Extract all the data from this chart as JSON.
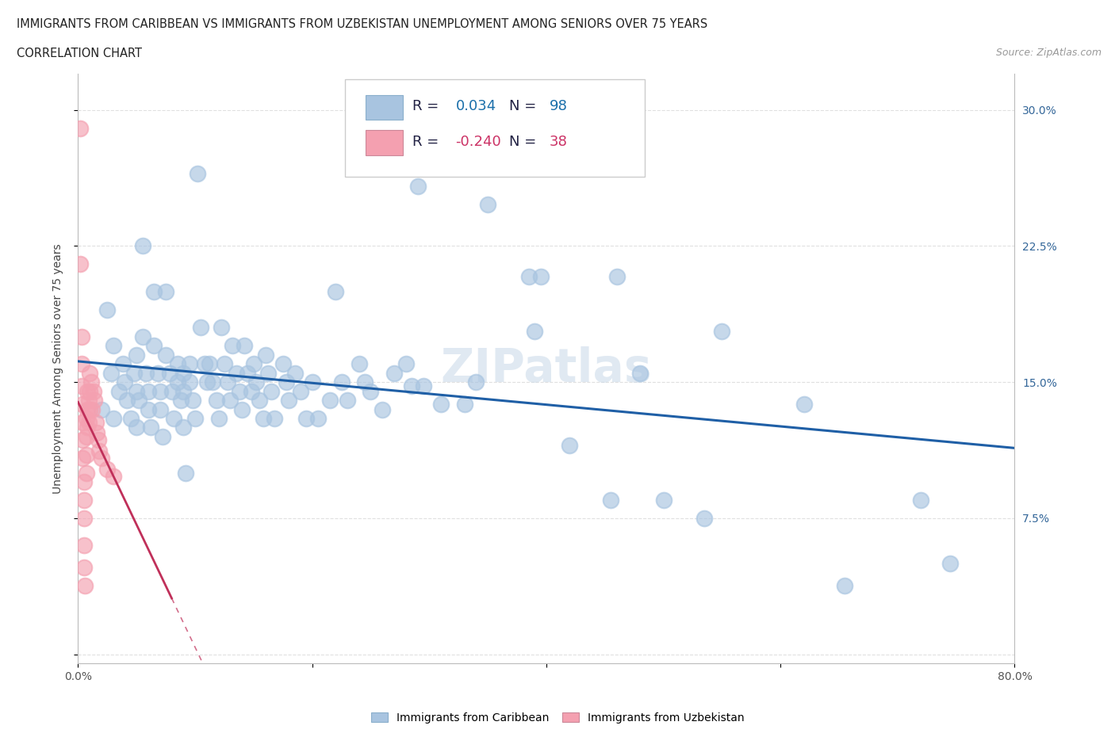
{
  "title_line1": "IMMIGRANTS FROM CARIBBEAN VS IMMIGRANTS FROM UZBEKISTAN UNEMPLOYMENT AMONG SENIORS OVER 75 YEARS",
  "title_line2": "CORRELATION CHART",
  "source_text": "Source: ZipAtlas.com",
  "ylabel": "Unemployment Among Seniors over 75 years",
  "xlim": [
    0.0,
    0.8
  ],
  "ylim": [
    -0.005,
    0.32
  ],
  "xticks": [
    0.0,
    0.2,
    0.4,
    0.6,
    0.8
  ],
  "xticklabels": [
    "0.0%",
    "",
    "",
    "",
    "80.0%"
  ],
  "yticks": [
    0.0,
    0.075,
    0.15,
    0.225,
    0.3
  ],
  "right_yticklabels": [
    "",
    "7.5%",
    "15.0%",
    "22.5%",
    "30.0%"
  ],
  "blue_scatter_color": "#a8c4e0",
  "pink_scatter_color": "#f4a0b0",
  "blue_line_color": "#1f5fa6",
  "pink_line_color": "#c0305a",
  "watermark": "ZIPatlas",
  "grid_color": "#e0e0e0",
  "background_color": "#ffffff",
  "blue_scatter": [
    [
      0.02,
      0.135
    ],
    [
      0.025,
      0.19
    ],
    [
      0.028,
      0.155
    ],
    [
      0.03,
      0.17
    ],
    [
      0.03,
      0.13
    ],
    [
      0.035,
      0.145
    ],
    [
      0.038,
      0.16
    ],
    [
      0.04,
      0.15
    ],
    [
      0.042,
      0.14
    ],
    [
      0.045,
      0.13
    ],
    [
      0.048,
      0.155
    ],
    [
      0.05,
      0.165
    ],
    [
      0.05,
      0.145
    ],
    [
      0.05,
      0.125
    ],
    [
      0.052,
      0.14
    ],
    [
      0.055,
      0.225
    ],
    [
      0.055,
      0.175
    ],
    [
      0.058,
      0.155
    ],
    [
      0.06,
      0.145
    ],
    [
      0.06,
      0.135
    ],
    [
      0.062,
      0.125
    ],
    [
      0.065,
      0.2
    ],
    [
      0.065,
      0.17
    ],
    [
      0.068,
      0.155
    ],
    [
      0.07,
      0.145
    ],
    [
      0.07,
      0.135
    ],
    [
      0.072,
      0.12
    ],
    [
      0.075,
      0.2
    ],
    [
      0.075,
      0.165
    ],
    [
      0.078,
      0.155
    ],
    [
      0.08,
      0.145
    ],
    [
      0.082,
      0.13
    ],
    [
      0.085,
      0.16
    ],
    [
      0.085,
      0.15
    ],
    [
      0.088,
      0.14
    ],
    [
      0.09,
      0.155
    ],
    [
      0.09,
      0.145
    ],
    [
      0.09,
      0.125
    ],
    [
      0.092,
      0.1
    ],
    [
      0.095,
      0.16
    ],
    [
      0.095,
      0.15
    ],
    [
      0.098,
      0.14
    ],
    [
      0.1,
      0.13
    ],
    [
      0.102,
      0.265
    ],
    [
      0.105,
      0.18
    ],
    [
      0.108,
      0.16
    ],
    [
      0.11,
      0.15
    ],
    [
      0.112,
      0.16
    ],
    [
      0.115,
      0.15
    ],
    [
      0.118,
      0.14
    ],
    [
      0.12,
      0.13
    ],
    [
      0.122,
      0.18
    ],
    [
      0.125,
      0.16
    ],
    [
      0.128,
      0.15
    ],
    [
      0.13,
      0.14
    ],
    [
      0.132,
      0.17
    ],
    [
      0.135,
      0.155
    ],
    [
      0.138,
      0.145
    ],
    [
      0.14,
      0.135
    ],
    [
      0.142,
      0.17
    ],
    [
      0.145,
      0.155
    ],
    [
      0.148,
      0.145
    ],
    [
      0.15,
      0.16
    ],
    [
      0.152,
      0.15
    ],
    [
      0.155,
      0.14
    ],
    [
      0.158,
      0.13
    ],
    [
      0.16,
      0.165
    ],
    [
      0.162,
      0.155
    ],
    [
      0.165,
      0.145
    ],
    [
      0.168,
      0.13
    ],
    [
      0.175,
      0.16
    ],
    [
      0.178,
      0.15
    ],
    [
      0.18,
      0.14
    ],
    [
      0.185,
      0.155
    ],
    [
      0.19,
      0.145
    ],
    [
      0.195,
      0.13
    ],
    [
      0.2,
      0.15
    ],
    [
      0.205,
      0.13
    ],
    [
      0.215,
      0.14
    ],
    [
      0.22,
      0.2
    ],
    [
      0.225,
      0.15
    ],
    [
      0.23,
      0.14
    ],
    [
      0.24,
      0.16
    ],
    [
      0.245,
      0.15
    ],
    [
      0.25,
      0.145
    ],
    [
      0.26,
      0.135
    ],
    [
      0.27,
      0.155
    ],
    [
      0.28,
      0.16
    ],
    [
      0.285,
      0.148
    ],
    [
      0.29,
      0.258
    ],
    [
      0.295,
      0.148
    ],
    [
      0.31,
      0.138
    ],
    [
      0.33,
      0.138
    ],
    [
      0.34,
      0.15
    ],
    [
      0.35,
      0.248
    ],
    [
      0.385,
      0.208
    ],
    [
      0.39,
      0.178
    ],
    [
      0.395,
      0.208
    ],
    [
      0.42,
      0.115
    ],
    [
      0.455,
      0.085
    ],
    [
      0.46,
      0.208
    ],
    [
      0.48,
      0.155
    ],
    [
      0.5,
      0.085
    ],
    [
      0.535,
      0.075
    ],
    [
      0.55,
      0.178
    ],
    [
      0.62,
      0.138
    ],
    [
      0.655,
      0.038
    ],
    [
      0.72,
      0.085
    ],
    [
      0.745,
      0.05
    ]
  ],
  "pink_scatter": [
    [
      0.002,
      0.29
    ],
    [
      0.002,
      0.215
    ],
    [
      0.003,
      0.175
    ],
    [
      0.003,
      0.16
    ],
    [
      0.003,
      0.148
    ],
    [
      0.004,
      0.138
    ],
    [
      0.004,
      0.128
    ],
    [
      0.004,
      0.118
    ],
    [
      0.004,
      0.108
    ],
    [
      0.005,
      0.095
    ],
    [
      0.005,
      0.085
    ],
    [
      0.005,
      0.075
    ],
    [
      0.005,
      0.06
    ],
    [
      0.005,
      0.048
    ],
    [
      0.006,
      0.038
    ],
    [
      0.007,
      0.13
    ],
    [
      0.007,
      0.12
    ],
    [
      0.007,
      0.11
    ],
    [
      0.007,
      0.1
    ],
    [
      0.008,
      0.145
    ],
    [
      0.008,
      0.135
    ],
    [
      0.008,
      0.125
    ],
    [
      0.009,
      0.14
    ],
    [
      0.009,
      0.128
    ],
    [
      0.01,
      0.155
    ],
    [
      0.01,
      0.145
    ],
    [
      0.01,
      0.135
    ],
    [
      0.011,
      0.15
    ],
    [
      0.012,
      0.135
    ],
    [
      0.013,
      0.145
    ],
    [
      0.014,
      0.14
    ],
    [
      0.015,
      0.128
    ],
    [
      0.016,
      0.122
    ],
    [
      0.017,
      0.118
    ],
    [
      0.018,
      0.112
    ],
    [
      0.02,
      0.108
    ],
    [
      0.025,
      0.102
    ],
    [
      0.03,
      0.098
    ]
  ]
}
